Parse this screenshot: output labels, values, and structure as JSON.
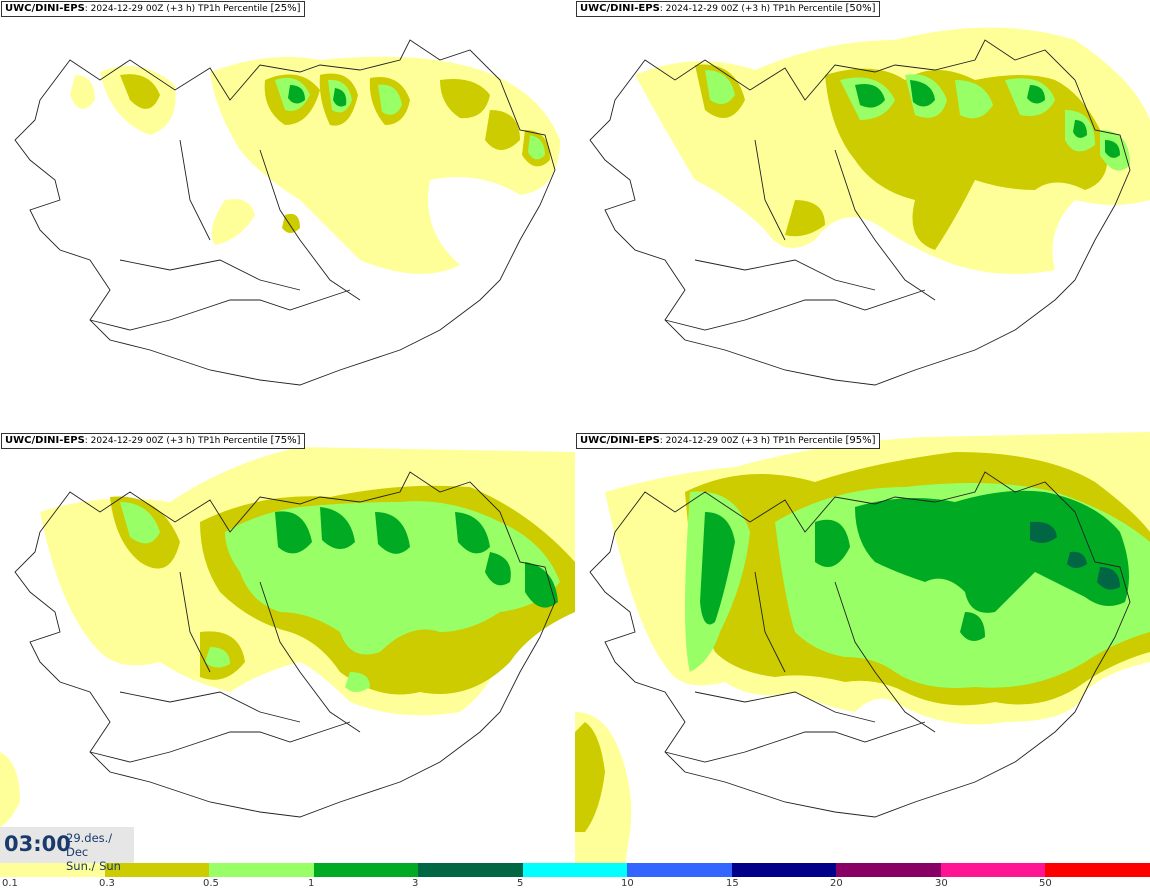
{
  "model_label": "UWC/DINI-EPS",
  "run_info": "2024-12-29 00Z (+3 h) TP1h Percentile",
  "panels": [
    {
      "percentile": "[25%]"
    },
    {
      "percentile": "[50%]"
    },
    {
      "percentile": "[75%]"
    },
    {
      "percentile": "[95%]"
    }
  ],
  "valid_time": {
    "hour": "03:00",
    "date": "29.des./ Dec",
    "day": "Sun./ Sun"
  },
  "legend": {
    "colors": [
      "#ffff99",
      "#cccc00",
      "#99ff66",
      "#00aa22",
      "#006644",
      "#00ffff",
      "#3366ff",
      "#000088",
      "#880066",
      "#ff1493",
      "#ff0000"
    ],
    "ticks": [
      "0.1",
      "0.3",
      "0.5",
      "1",
      "3",
      "5",
      "10",
      "15",
      "20",
      "30",
      "50"
    ]
  }
}
